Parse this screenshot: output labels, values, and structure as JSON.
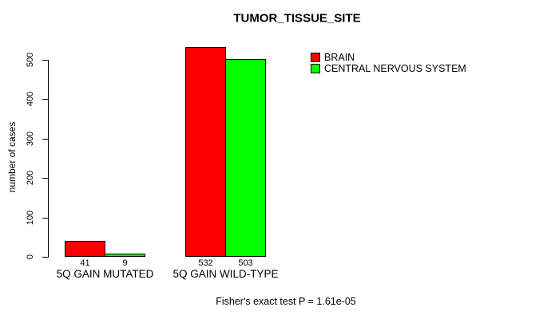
{
  "chart_data": {
    "type": "bar",
    "title": "TUMOR_TISSUE_SITE",
    "xlabel": "",
    "ylabel": "number of cases",
    "categories": [
      "5Q GAIN MUTATED",
      "5Q GAIN WILD-TYPE"
    ],
    "series": [
      {
        "name": "BRAIN",
        "color": "#FF0000",
        "values": [
          41,
          532
        ]
      },
      {
        "name": "CENTRAL NERVOUS SYSTEM",
        "color": "#00FF00",
        "values": [
          9,
          503
        ]
      }
    ],
    "yticks": [
      0,
      100,
      200,
      300,
      400,
      500
    ],
    "ylim": [
      0,
      500
    ],
    "grid": false,
    "bar_value_labels_shown": true,
    "legend_position": "top-right",
    "axis_color": "#000000",
    "background_color": "#FFFFFF",
    "footer": "Fisher's exact test P = 1.61e-05"
  }
}
